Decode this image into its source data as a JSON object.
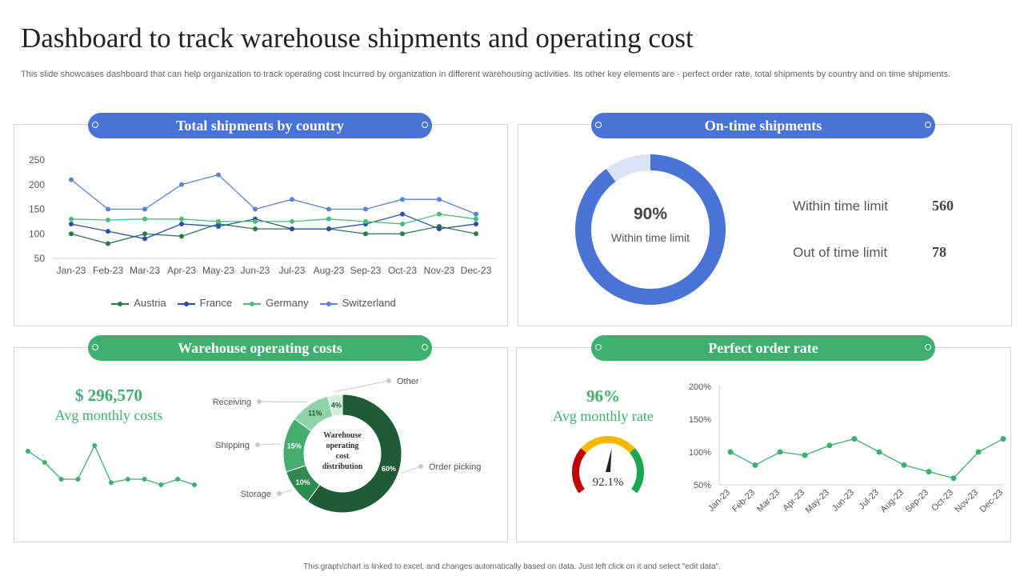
{
  "title": "Dashboard to track warehouse shipments and operating cost",
  "subtitle": "This slide showcases dashboard that can help organization to track operating cost incurred by organization in different warehousing activities. Its other key elements are - perfect order rate, total shipments by country and on time shipments.",
  "footer": "This graph/chart is linked to excel, and changes automatically based on data. Just left click on it and select \"edit data\".",
  "panels": {
    "shipments": "Total shipments by country",
    "ontime": "On-time shipments",
    "costs": "Warehouse operating costs",
    "order": "Perfect order rate"
  },
  "colors": {
    "blue": "#4a73d8",
    "green": "#3daf6e",
    "dark_green": "#1e5c37"
  },
  "ontime": {
    "percent_label": "90%",
    "percent_caption": "Within time limit",
    "stats": [
      {
        "label": "Within time limit",
        "value": "560"
      },
      {
        "label": "Out of time limit",
        "value": "78"
      }
    ]
  },
  "costs": {
    "amount": "$ 296,570",
    "caption": "Avg monthly costs",
    "center_label": [
      "Warehouse",
      "operating",
      "cost",
      "distribution"
    ]
  },
  "order": {
    "rate": "96%",
    "caption": "Avg monthly rate",
    "gauge_value": "92.1%"
  },
  "chart_data": [
    {
      "id": "shipments",
      "type": "line",
      "title": "Total shipments by country",
      "categories": [
        "Jan-23",
        "Feb-23",
        "Mar-23",
        "Apr-23",
        "May-23",
        "Jun-23",
        "Jul-23",
        "Aug-23",
        "Sep-23",
        "Oct-23",
        "Nov-23",
        "Dec-23"
      ],
      "ylim": [
        50,
        250
      ],
      "yticks": [
        "250",
        "200",
        "150",
        "100",
        "50"
      ],
      "series": [
        {
          "name": "Austria",
          "color": "#2a7a48",
          "values": [
            100,
            80,
            100,
            95,
            120,
            110,
            110,
            110,
            100,
            100,
            115,
            100
          ]
        },
        {
          "name": "France",
          "color": "#2c4fa6",
          "values": [
            120,
            105,
            90,
            120,
            115,
            130,
            110,
            110,
            120,
            140,
            110,
            120
          ]
        },
        {
          "name": "Germany",
          "color": "#4cbb7c",
          "values": [
            130,
            128,
            130,
            130,
            125,
            125,
            125,
            130,
            125,
            120,
            140,
            130
          ]
        },
        {
          "name": "Switzerland",
          "color": "#5a82d6",
          "values": [
            210,
            150,
            150,
            200,
            220,
            150,
            170,
            150,
            150,
            170,
            170,
            140
          ]
        }
      ]
    },
    {
      "id": "ontime_donut",
      "type": "pie",
      "labels": [
        "Within time limit",
        "Out of time limit"
      ],
      "values": [
        90,
        10
      ]
    },
    {
      "id": "cost_trend",
      "type": "line",
      "values": [
        40,
        30,
        15,
        15,
        45,
        12,
        15,
        15,
        10,
        15,
        10
      ]
    },
    {
      "id": "cost_distribution",
      "type": "pie",
      "labels": [
        "Order picking",
        "Storage",
        "Shipping",
        "Receiving",
        "Other"
      ],
      "values": [
        60,
        10,
        15,
        11,
        4
      ],
      "value_labels": [
        "60%",
        "10%",
        "15%",
        "11%",
        "4%"
      ],
      "colors": [
        "#1e5c37",
        "#2f8a50",
        "#44ad6c",
        "#8fd3a8",
        "#d3eede"
      ]
    },
    {
      "id": "gauge",
      "type": "gauge",
      "value": 92.1
    },
    {
      "id": "order_rate",
      "type": "line",
      "categories": [
        "Jan-23",
        "Feb-23",
        "Mar-23",
        "Apr-23",
        "May-23",
        "Jun-23",
        "Jul-23",
        "Aug-23",
        "Sep-23",
        "Oct-23",
        "Nov-23",
        "Dec-23"
      ],
      "values": [
        100,
        80,
        100,
        95,
        110,
        120,
        100,
        80,
        70,
        60,
        100,
        120
      ],
      "ylim": [
        50,
        200
      ],
      "yticks": [
        "200%",
        "150%",
        "100%",
        "50%"
      ]
    }
  ]
}
